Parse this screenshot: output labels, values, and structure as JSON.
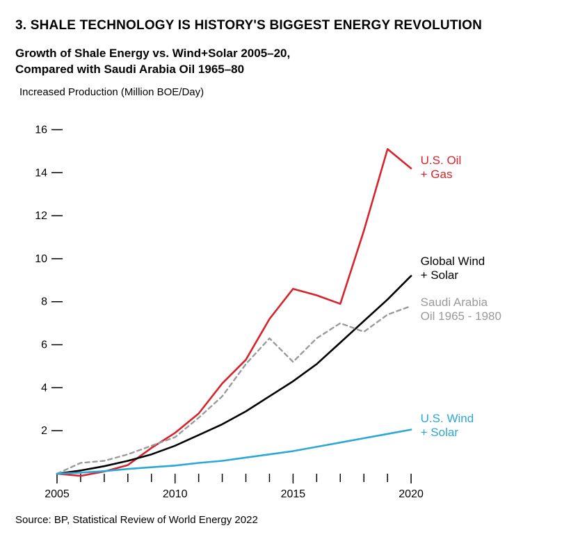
{
  "title": "3. SHALE TECHNOLOGY IS HISTORY'S BIGGEST ENERGY REVOLUTION",
  "subtitle_line1": "Growth of Shale Energy vs. Wind+Solar 2005–20,",
  "subtitle_line2": "Compared with Saudi Arabia Oil 1965–80",
  "ylabel": "Increased Production (Million BOE/Day)",
  "source": "Source: BP, Statistical Review of World Energy 2022",
  "chart": {
    "type": "line",
    "background_color": "#ffffff",
    "axis_color": "#000000",
    "tick_color": "#000000",
    "tick_font_size": 16,
    "label_font_size": 17,
    "x": {
      "min": 2005,
      "max": 2021.5,
      "labels": [
        2005,
        2010,
        2015,
        2020
      ],
      "minor_ticks": [
        2006,
        2007,
        2008,
        2009,
        2011,
        2012,
        2013,
        2014,
        2016,
        2017,
        2018,
        2019
      ]
    },
    "y": {
      "min": 0,
      "max": 16.5,
      "ticks": [
        2,
        4,
        6,
        8,
        10,
        12,
        14,
        16
      ]
    },
    "series": [
      {
        "id": "us_oil_gas",
        "label_lines": [
          "U.S. Oil",
          "+ Gas"
        ],
        "color": "#d8232a",
        "stroke_width": 2.6,
        "dash": "none",
        "x": [
          2005,
          2006,
          2007,
          2008,
          2009,
          2010,
          2011,
          2012,
          2013,
          2014,
          2015,
          2016,
          2017,
          2018,
          2019,
          2020
        ],
        "y": [
          0.0,
          -0.1,
          0.1,
          0.4,
          1.2,
          1.9,
          2.8,
          4.2,
          5.3,
          7.2,
          8.6,
          8.3,
          7.9,
          11.3,
          15.1,
          14.2
        ],
        "label_at_x": 2020.4,
        "label_at_y": 14.4
      },
      {
        "id": "global_wind_solar",
        "label_lines": [
          "Global Wind",
          "+ Solar"
        ],
        "color": "#000000",
        "stroke_width": 2.6,
        "dash": "none",
        "x": [
          2005,
          2006,
          2007,
          2008,
          2009,
          2010,
          2011,
          2012,
          2013,
          2014,
          2015,
          2016,
          2017,
          2018,
          2019,
          2020
        ],
        "y": [
          0.0,
          0.15,
          0.35,
          0.6,
          0.9,
          1.3,
          1.8,
          2.3,
          2.9,
          3.6,
          4.3,
          5.1,
          6.1,
          7.1,
          8.1,
          9.2
        ],
        "label_at_x": 2020.4,
        "label_at_y": 9.7
      },
      {
        "id": "saudi_oil",
        "label_lines": [
          "Saudi Arabia",
          "Oil 1965 - 1980"
        ],
        "color": "#9a9a9a",
        "stroke_width": 2.4,
        "dash": "6,5",
        "x": [
          2005,
          2006,
          2007,
          2008,
          2009,
          2010,
          2011,
          2012,
          2013,
          2014,
          2015,
          2016,
          2017,
          2018,
          2019,
          2020
        ],
        "y": [
          0.0,
          0.5,
          0.6,
          0.9,
          1.3,
          1.7,
          2.6,
          3.6,
          5.1,
          6.3,
          5.2,
          6.3,
          7.0,
          6.6,
          7.4,
          7.8
        ],
        "label_at_x": 2020.4,
        "label_at_y": 7.8
      },
      {
        "id": "us_wind_solar",
        "label_lines": [
          "U.S. Wind",
          "+ Solar"
        ],
        "color": "#2aa7d9",
        "stroke_width": 2.6,
        "dash": "none",
        "x": [
          2005,
          2006,
          2007,
          2008,
          2009,
          2010,
          2011,
          2012,
          2013,
          2014,
          2015,
          2016,
          2017,
          2018,
          2019,
          2020
        ],
        "y": [
          0.0,
          0.05,
          0.12,
          0.22,
          0.3,
          0.38,
          0.5,
          0.6,
          0.75,
          0.9,
          1.05,
          1.25,
          1.45,
          1.65,
          1.85,
          2.05
        ],
        "label_at_x": 2020.4,
        "label_at_y": 2.4
      }
    ]
  }
}
